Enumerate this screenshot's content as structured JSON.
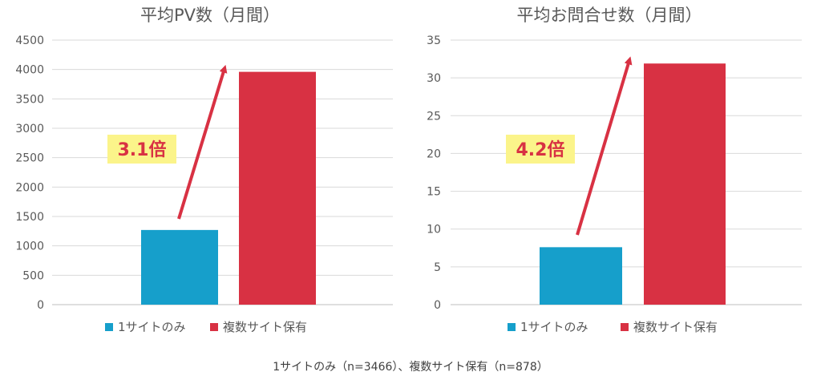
{
  "chart_data": [
    {
      "type": "bar",
      "title": "平均PV数（月間）",
      "categories": [
        "1サイトのみ",
        "複数サイト保有"
      ],
      "values": [
        1270,
        3960
      ],
      "colors": [
        "#169fcb",
        "#d83143"
      ],
      "ylim": [
        0,
        4500
      ],
      "yticks": [
        "0",
        "500",
        "1000",
        "1500",
        "2000",
        "2500",
        "3000",
        "3500",
        "4000",
        "4500"
      ],
      "grid": true,
      "legend": "bottom",
      "annotation": "3.1倍"
    },
    {
      "type": "bar",
      "title": "平均お問合せ数（月間）",
      "categories": [
        "1サイトのみ",
        "複数サイト保有"
      ],
      "values": [
        7.6,
        31.9
      ],
      "colors": [
        "#169fcb",
        "#d83143"
      ],
      "ylim": [
        0,
        35
      ],
      "yticks": [
        "0",
        "5",
        "10",
        "15",
        "20",
        "25",
        "30",
        "35"
      ],
      "grid": true,
      "legend": "bottom",
      "annotation": "4.2倍"
    }
  ],
  "footnote": "1サイトのみ（n=3466）、複数サイト保有（n=878）",
  "colors": {
    "grid": "#d9d9d9",
    "annotation_bg": "#fbf48a",
    "arrow": "#d83143"
  }
}
